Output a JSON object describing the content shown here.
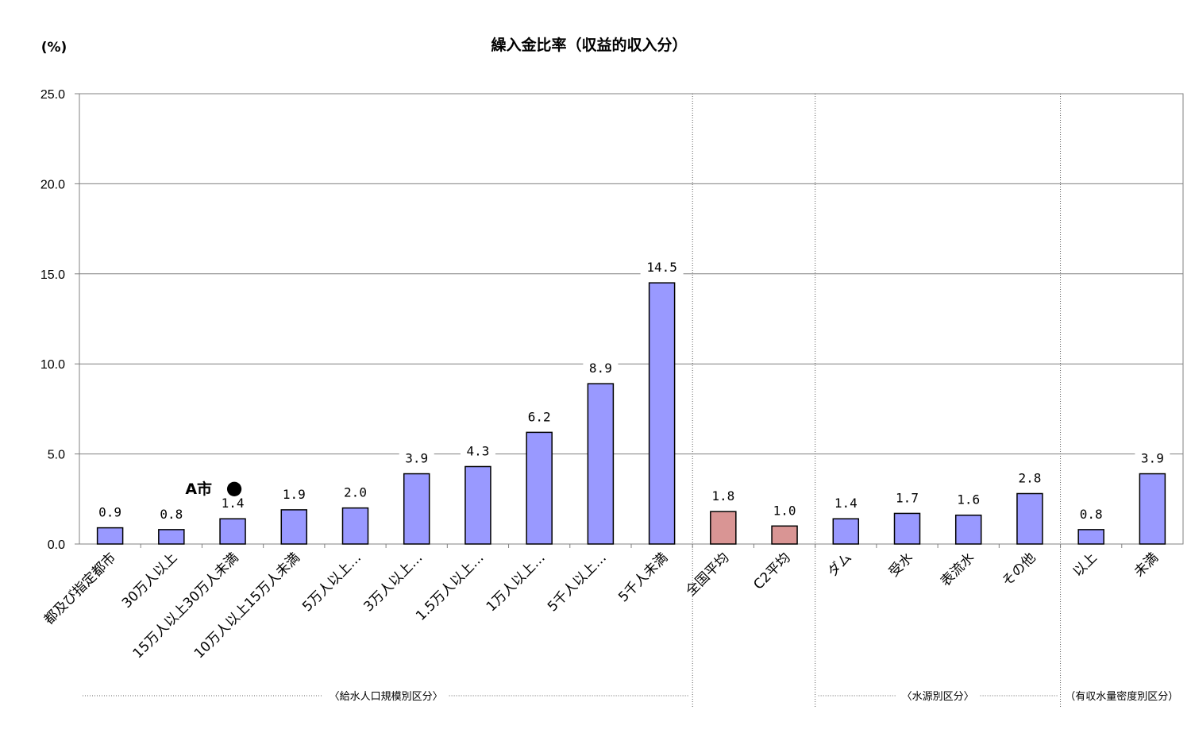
{
  "chart_data": {
    "type": "bar",
    "title": "繰入金比率（収益的収入分）",
    "unit_label": "(%)",
    "ylim": [
      0,
      25
    ],
    "yticks": [
      "0.0",
      "5.0",
      "10.0",
      "15.0",
      "20.0",
      "25.0"
    ],
    "grid": true,
    "categories": [
      "都及び指定都市",
      "30万人以上",
      "15万人以上30万人未満",
      "10万人以上15万人未満",
      "5万人以上…",
      "3万人以上…",
      "1.5万人以上…",
      "1万人以上…",
      "5千人以上…",
      "5千人未満",
      "全国平均",
      "C2平均",
      "ダム",
      "受水",
      "表流水",
      "その他",
      "以上",
      "未満"
    ],
    "values": [
      0.9,
      0.8,
      1.4,
      1.9,
      2.0,
      3.9,
      4.3,
      6.2,
      8.9,
      14.5,
      1.8,
      1.0,
      1.4,
      1.7,
      1.6,
      2.8,
      0.8,
      3.9
    ],
    "value_labels": [
      "0.9",
      "0.8",
      "1.4",
      "1.9",
      "2.0",
      "3.9",
      "4.3",
      "6.2",
      "8.9",
      "14.5",
      "1.8",
      "1.0",
      "1.4",
      "1.7",
      "1.6",
      "2.8",
      "0.8",
      "3.9"
    ],
    "bar_colors": {
      "default": "#9999ff",
      "average": "#d99594"
    },
    "average_indices": [
      10,
      11
    ],
    "groups": [
      {
        "label": "〈給水人口規模別区分〉",
        "start": 0,
        "end": 9
      },
      {
        "label": "",
        "start": 10,
        "end": 11
      },
      {
        "label": "〈水源別区分〉",
        "start": 12,
        "end": 15
      },
      {
        "label": "（有収水量密度別区分）",
        "start": 16,
        "end": 17
      }
    ],
    "marker": {
      "label": "A市",
      "symbol": "●",
      "category_index": 2
    }
  }
}
